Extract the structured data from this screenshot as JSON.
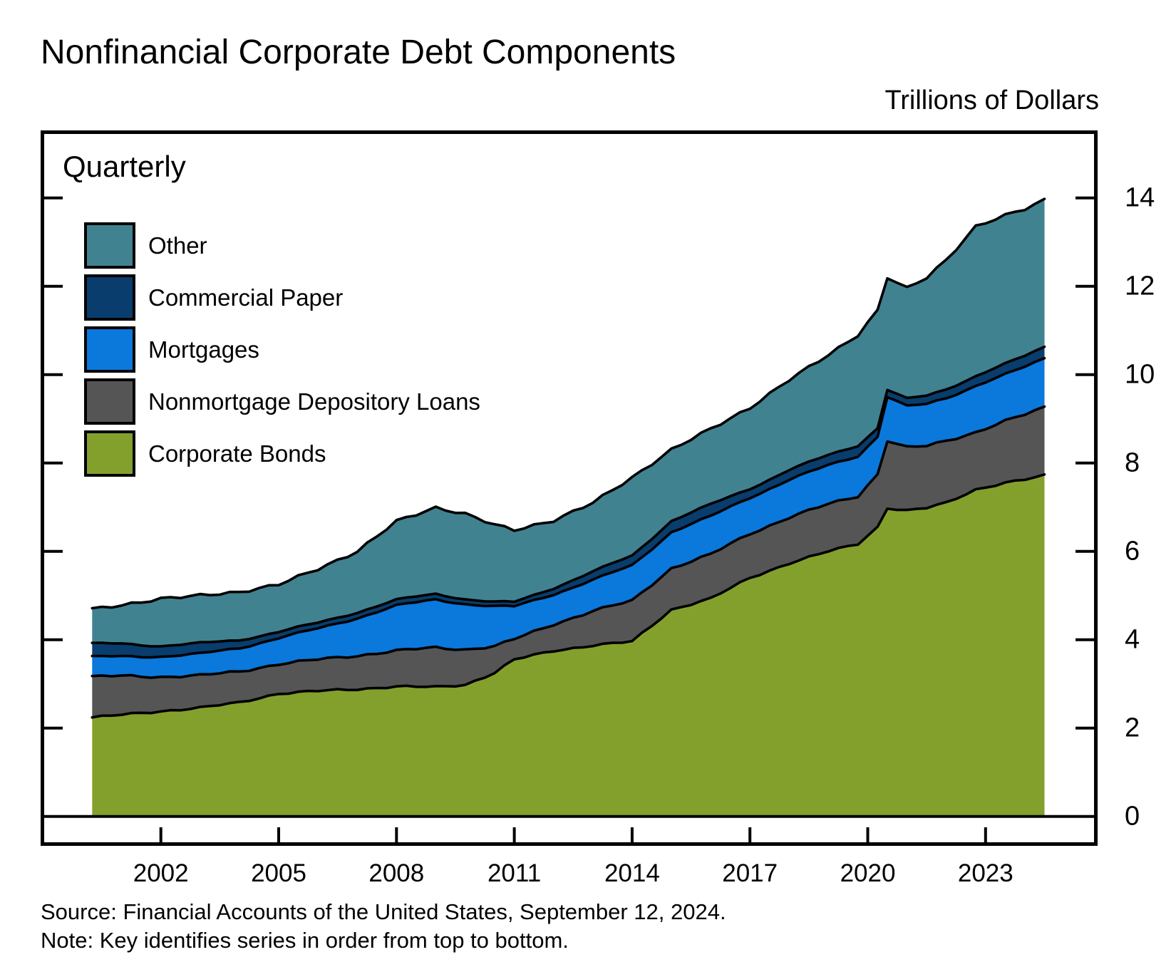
{
  "title": "Nonfinancial Corporate Debt Components",
  "units_label": "Trillions of Dollars",
  "frequency_label": "Quarterly",
  "source_line": "Source: Financial Accounts of the United States, September 12, 2024.",
  "note_line": "Note: Key identifies series in order from top to bottom.",
  "colors": {
    "background": "#ffffff",
    "text": "#000000",
    "outline": "#000000"
  },
  "legend": {
    "items": [
      {
        "label": "Other",
        "color": "#418291"
      },
      {
        "label": "Commercial Paper",
        "color": "#083D6E"
      },
      {
        "label": "Mortgages",
        "color": "#0B78DC"
      },
      {
        "label": "Nonmortgage Depository Loans",
        "color": "#555555"
      },
      {
        "label": "Corporate Bonds",
        "color": "#84A02C"
      }
    ]
  },
  "y_axis": {
    "ticks": [
      0,
      2,
      4,
      6,
      8,
      10,
      12,
      14
    ],
    "min": 0,
    "max": 14
  },
  "x_axis": {
    "tick_years": [
      2002,
      2005,
      2008,
      2011,
      2014,
      2017,
      2020,
      2023
    ]
  },
  "chart_data": {
    "type": "area",
    "stacked": true,
    "frequency": "quarterly",
    "x_start": 2000.25,
    "x_end": 2024.5,
    "ylim": [
      0,
      14
    ],
    "ylabel": "Trillions of Dollars",
    "legend_position": "top-left-inside",
    "grid": false,
    "series": [
      {
        "key": "corporate_bonds",
        "label": "Corporate Bonds",
        "color": "#84A02C"
      },
      {
        "key": "nonmortgage_depository_loans",
        "label": "Nonmortgage Depository Loans",
        "color": "#555555"
      },
      {
        "key": "mortgages",
        "label": "Mortgages",
        "color": "#0B78DC"
      },
      {
        "key": "commercial_paper",
        "label": "Commercial Paper",
        "color": "#083D6E"
      },
      {
        "key": "other",
        "label": "Other",
        "color": "#418291"
      }
    ],
    "anchor_columns": [
      "year",
      "corporate_bonds",
      "nonmortgage_depository_loans",
      "mortgages",
      "commercial_paper",
      "other"
    ],
    "anchors": [
      [
        2000.25,
        2.24,
        0.92,
        0.45,
        0.3,
        0.78
      ],
      [
        2001.0,
        2.3,
        0.88,
        0.44,
        0.29,
        0.87
      ],
      [
        2002.0,
        2.38,
        0.78,
        0.46,
        0.24,
        1.07
      ],
      [
        2003.0,
        2.46,
        0.73,
        0.49,
        0.24,
        1.08
      ],
      [
        2004.0,
        2.58,
        0.7,
        0.53,
        0.18,
        1.09
      ],
      [
        2005.0,
        2.78,
        0.67,
        0.59,
        0.14,
        1.07
      ],
      [
        2006.0,
        2.84,
        0.71,
        0.7,
        0.13,
        1.22
      ],
      [
        2007.0,
        2.88,
        0.76,
        0.85,
        0.13,
        1.38
      ],
      [
        2008.0,
        2.94,
        0.81,
        1.02,
        0.13,
        1.78
      ],
      [
        2009.0,
        2.93,
        0.89,
        1.09,
        0.13,
        1.95
      ],
      [
        2009.75,
        2.98,
        0.8,
        1.03,
        0.11,
        1.93
      ],
      [
        2010.5,
        3.25,
        0.6,
        0.9,
        0.1,
        1.75
      ],
      [
        2011.0,
        3.55,
        0.46,
        0.74,
        0.1,
        1.63
      ],
      [
        2012.0,
        3.75,
        0.6,
        0.68,
        0.14,
        1.53
      ],
      [
        2013.0,
        3.87,
        0.78,
        0.7,
        0.19,
        1.56
      ],
      [
        2014.0,
        3.96,
        0.92,
        0.8,
        0.22,
        1.77
      ],
      [
        2015.0,
        4.68,
        0.94,
        0.82,
        0.25,
        1.61
      ],
      [
        2016.0,
        4.93,
        1.0,
        0.86,
        0.27,
        1.71
      ],
      [
        2017.0,
        5.4,
        1.0,
        0.82,
        0.2,
        1.83
      ],
      [
        2018.0,
        5.73,
        1.04,
        0.85,
        0.22,
        2.04
      ],
      [
        2019.0,
        6.0,
        1.07,
        0.88,
        0.23,
        2.27
      ],
      [
        2019.75,
        6.17,
        1.08,
        0.91,
        0.24,
        2.5
      ],
      [
        2020.25,
        6.55,
        1.2,
        0.85,
        0.19,
        2.66
      ],
      [
        2020.5,
        6.98,
        1.53,
        0.99,
        0.16,
        2.54
      ],
      [
        2021.0,
        6.92,
        1.43,
        0.93,
        0.17,
        2.5
      ],
      [
        2021.5,
        6.98,
        1.4,
        0.95,
        0.19,
        2.68
      ],
      [
        2022.0,
        7.1,
        1.4,
        0.97,
        0.2,
        2.93
      ],
      [
        2022.75,
        7.4,
        1.3,
        1.05,
        0.22,
        3.38
      ],
      [
        2023.5,
        7.55,
        1.4,
        1.05,
        0.24,
        3.36
      ],
      [
        2024.0,
        7.62,
        1.47,
        1.08,
        0.25,
        3.33
      ],
      [
        2024.5,
        7.72,
        1.54,
        1.11,
        0.26,
        3.33
      ]
    ]
  }
}
